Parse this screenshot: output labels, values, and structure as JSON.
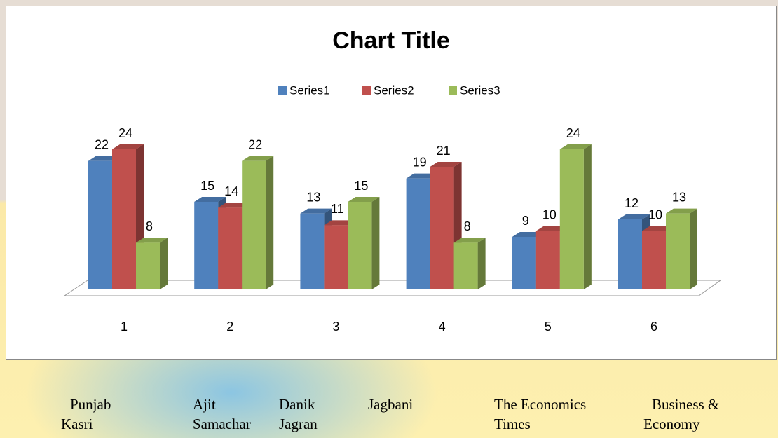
{
  "chart_data": {
    "type": "bar3d",
    "title": "Chart Title",
    "categories": [
      "1",
      "2",
      "3",
      "4",
      "5",
      "6"
    ],
    "series": [
      {
        "name": "Series1",
        "color": "#4f81bd",
        "values": [
          22,
          15,
          13,
          19,
          9,
          12
        ]
      },
      {
        "name": "Series2",
        "color": "#c0504d",
        "values": [
          24,
          14,
          11,
          21,
          10,
          10
        ]
      },
      {
        "name": "Series3",
        "color": "#9bbb59",
        "values": [
          8,
          22,
          15,
          8,
          24,
          13
        ]
      }
    ],
    "legend": "top",
    "data_labels": true
  },
  "captions": [
    [
      "Punjab",
      "Kasri"
    ],
    [
      "Ajit",
      "Samachar"
    ],
    [
      "Danik",
      "Jagran"
    ],
    [
      "Jagbani"
    ],
    [
      "The Economics",
      "Times"
    ],
    [
      "Business &",
      "Economy"
    ]
  ]
}
